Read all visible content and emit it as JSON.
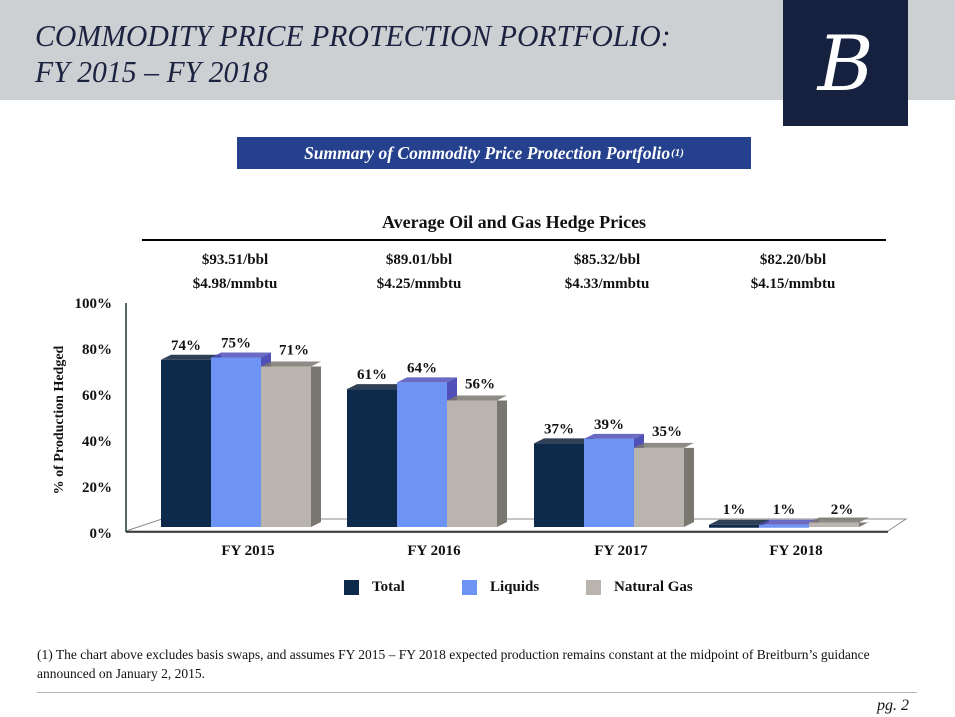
{
  "header": {
    "title_line1": "COMMODITY PRICE PROTECTION PORTFOLIO:",
    "title_line2": "FY 2015 – FY 2018",
    "logo_letter": "B"
  },
  "banner": {
    "text": "Summary of Commodity Price Protection Portfolio",
    "superscript": "(1)"
  },
  "hedge_prices": {
    "title": "Average Oil and Gas Hedge Prices",
    "columns": [
      {
        "oil": "$93.51/bbl",
        "gas": "$4.98/mmbtu"
      },
      {
        "oil": "$89.01/bbl",
        "gas": "$4.25/mmbtu"
      },
      {
        "oil": "$85.32/bbl",
        "gas": "$4.33/mmbtu"
      },
      {
        "oil": "$82.20/bbl",
        "gas": "$4.15/mmbtu"
      }
    ]
  },
  "chart_data": {
    "type": "bar",
    "title": "Average Oil and Gas Hedge Prices",
    "xlabel": "",
    "ylabel": "% of Production Hedged",
    "ylim": [
      0,
      100
    ],
    "yticks": [
      "0%",
      "20%",
      "40%",
      "60%",
      "80%",
      "100%"
    ],
    "ytick_values": [
      0,
      20,
      40,
      60,
      80,
      100
    ],
    "categories": [
      "FY 2015",
      "FY 2016",
      "FY 2017",
      "FY 2018"
    ],
    "series": [
      {
        "name": "Total",
        "color": "#0e2a4a",
        "side_color": "#0a1f38",
        "values": [
          74,
          61,
          37,
          1
        ],
        "labels": [
          "74%",
          "61%",
          "37%",
          "1%"
        ]
      },
      {
        "name": "Liquids",
        "color": "#6d93f5",
        "side_color": "#5050b8",
        "values": [
          75,
          64,
          39,
          1
        ],
        "labels": [
          "75%",
          "64%",
          "39%",
          "1%"
        ]
      },
      {
        "name": "Natural Gas",
        "color": "#b9b5ae",
        "side_color": "#7a7670",
        "values": [
          71,
          56,
          35,
          2
        ],
        "labels": [
          "71%",
          "56%",
          "35%",
          "2%"
        ]
      }
    ],
    "grid": false,
    "legend": "bottom",
    "style": "3d-clustered"
  },
  "footnote": "(1) The chart above excludes basis swaps, and assumes FY 2015 – FY 2018 expected production remains constant at  the midpoint of Breitburn’s guidance announced on January 2, 2015.",
  "page": "pg. 2"
}
